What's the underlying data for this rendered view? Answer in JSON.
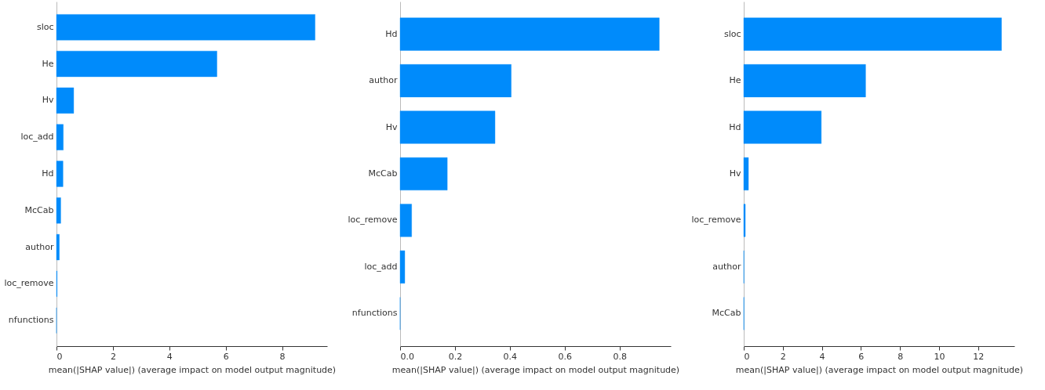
{
  "chart_data": [
    {
      "type": "bar",
      "orientation": "horizontal",
      "categories": [
        "sloc",
        "He",
        "Hv",
        "loc_add",
        "Hd",
        "McCab",
        "author",
        "loc_remove",
        "nfunctions"
      ],
      "values": [
        9.17,
        5.69,
        0.61,
        0.24,
        0.23,
        0.15,
        0.1,
        0.02,
        0
      ],
      "color": "#008bfb",
      "xlabel": "mean(|SHAP value|) (average impact on model output magnitude)",
      "xlim": [
        0,
        9.6
      ],
      "xticks": [
        0,
        2,
        4,
        6,
        8
      ],
      "grid": false
    },
    {
      "type": "bar",
      "orientation": "horizontal",
      "categories": [
        "Hd",
        "author",
        "Hv",
        "McCab",
        "loc_remove",
        "loc_add",
        "nfunctions"
      ],
      "values": [
        0.945,
        0.405,
        0.346,
        0.172,
        0.042,
        0.017,
        0
      ],
      "color": "#008bfb",
      "xlabel": "mean(|SHAP value|) (average impact on model output magnitude)",
      "xlim": [
        0,
        0.987
      ],
      "xticks": [
        {
          "value": 0,
          "label": "0.0"
        },
        0.2,
        0.4,
        0.6,
        0.8
      ],
      "grid": false
    },
    {
      "type": "bar",
      "orientation": "horizontal",
      "categories": [
        "sloc",
        "He",
        "Hd",
        "Hv",
        "loc_remove",
        "author",
        "McCab"
      ],
      "values": [
        13.2,
        6.24,
        3.97,
        0.24,
        0.08,
        0.01,
        0.01
      ],
      "color": "#008bfb",
      "xlabel": "mean(|SHAP value|) (average impact on model output magnitude)",
      "xlim": [
        0,
        13.86
      ],
      "xticks": [
        0,
        2,
        4,
        6,
        8,
        10,
        12
      ],
      "grid": false
    }
  ]
}
